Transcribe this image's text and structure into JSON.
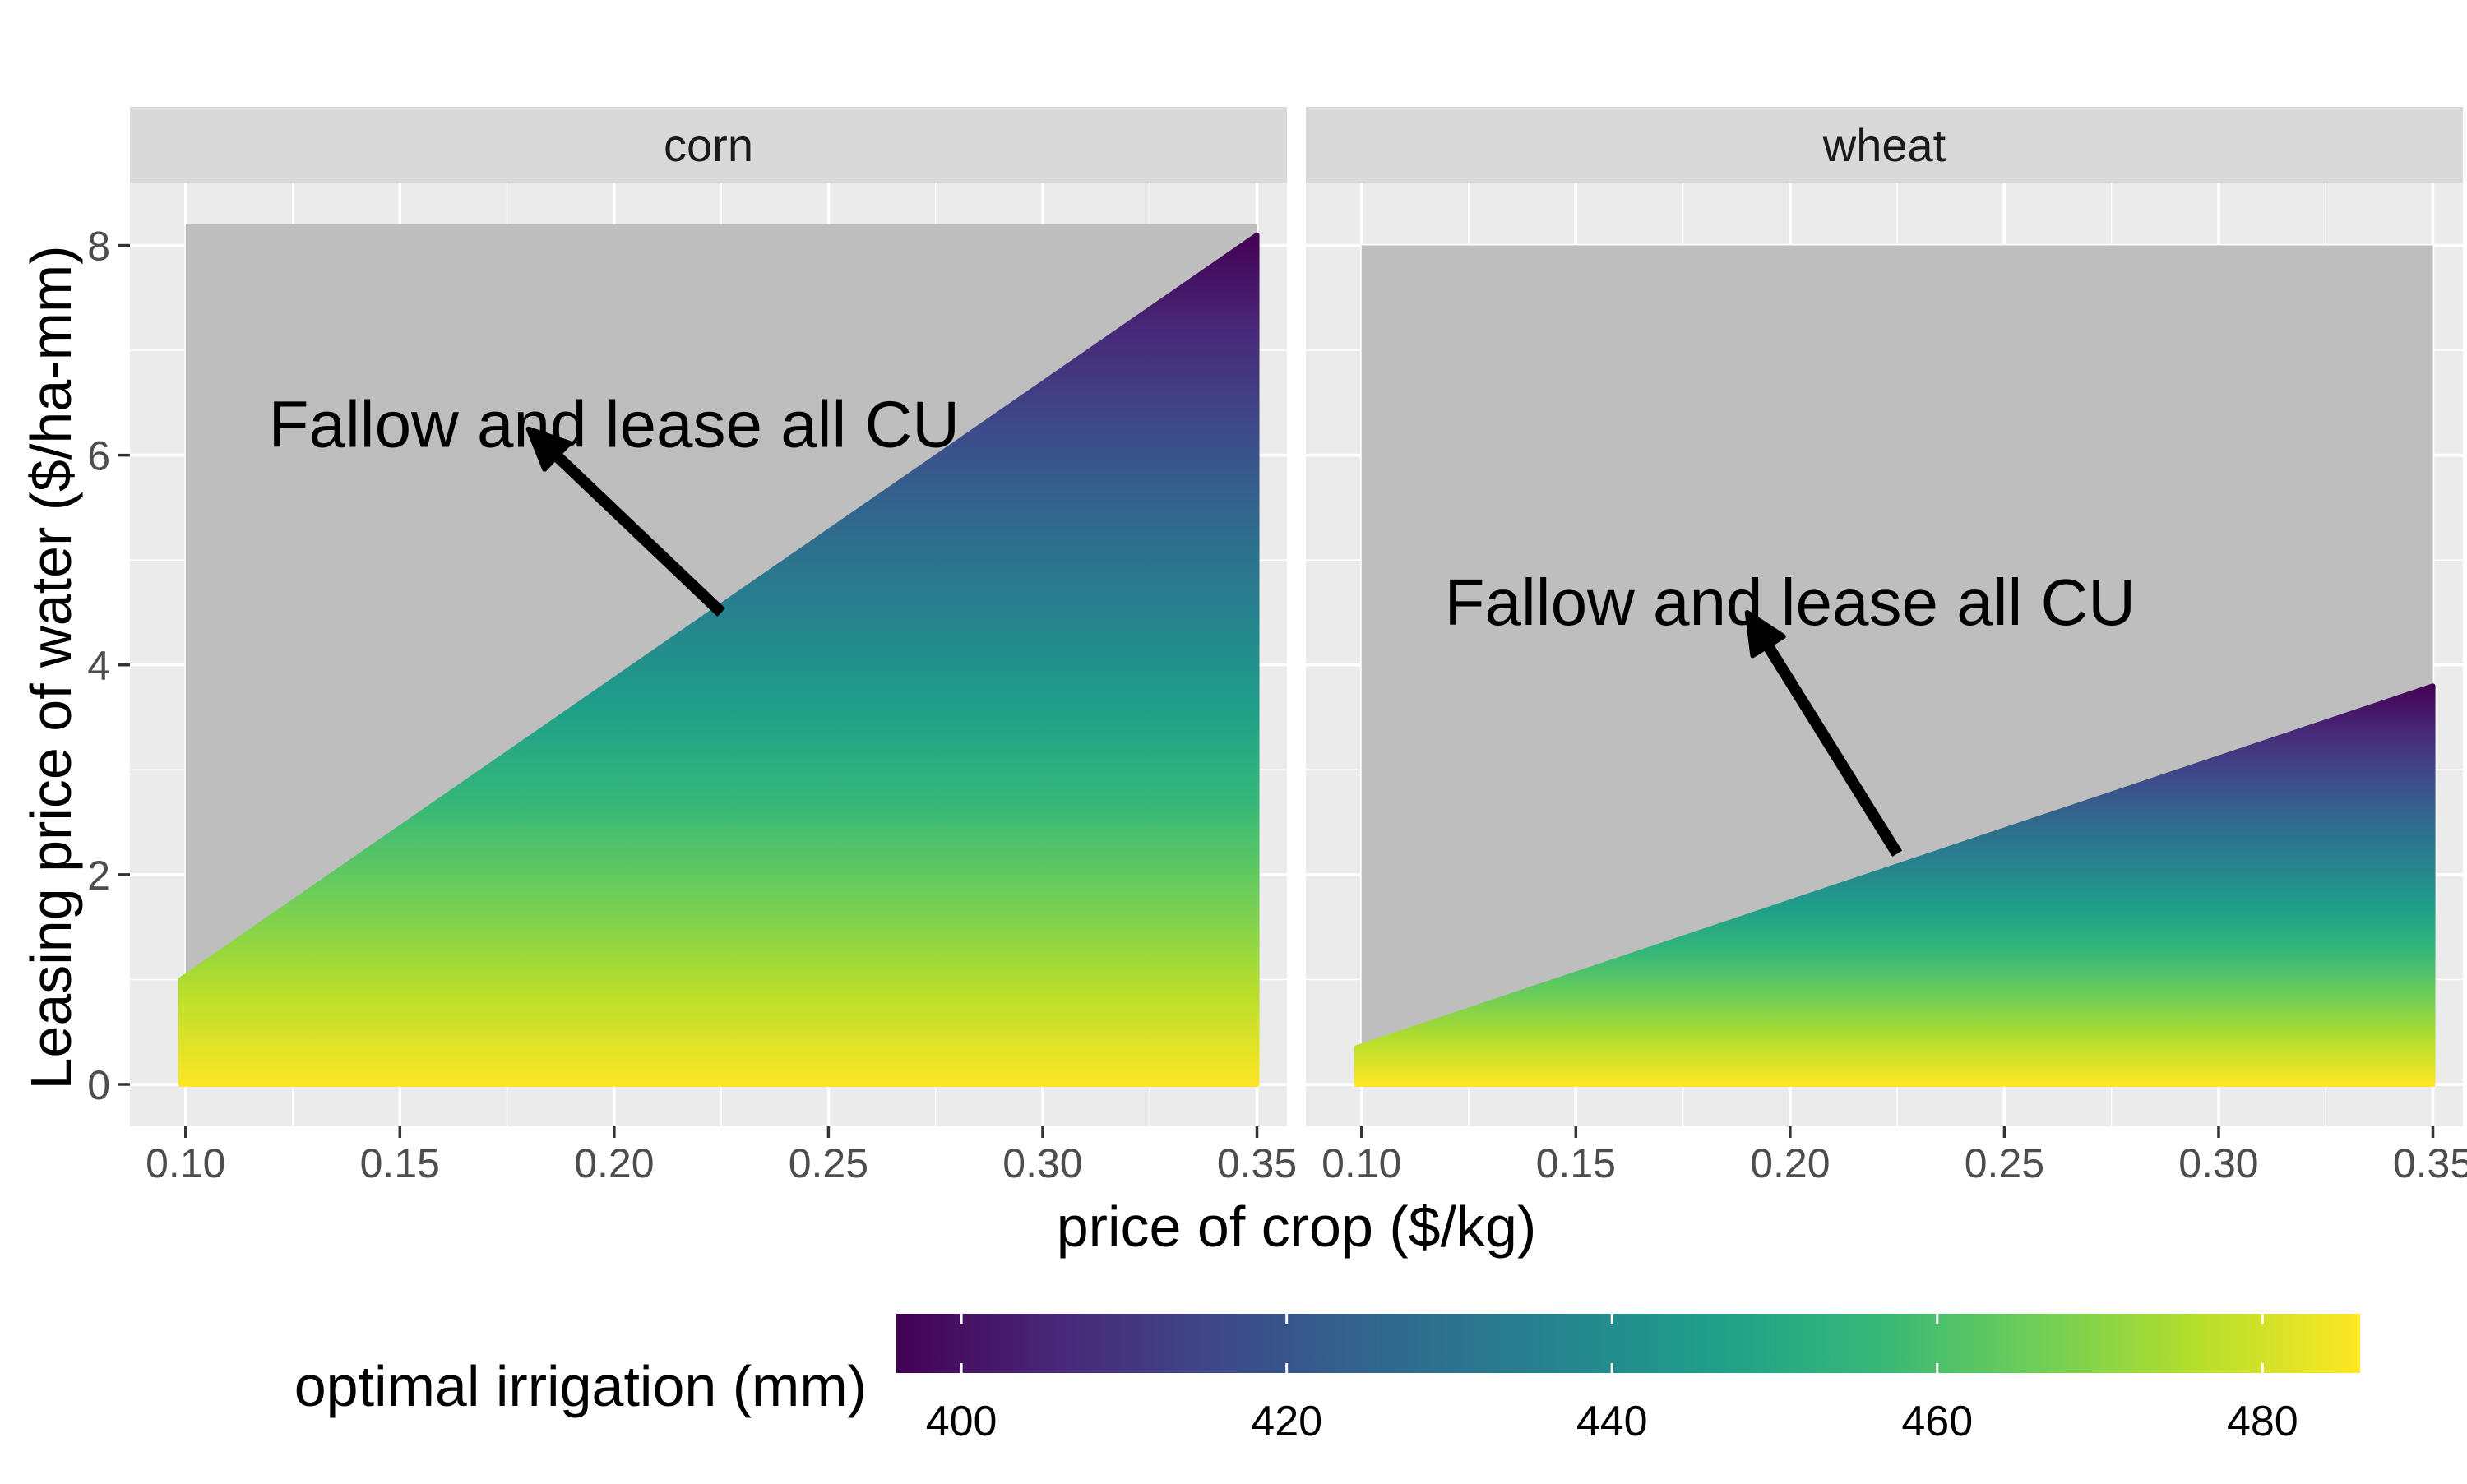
{
  "chart_data": {
    "type": "area",
    "xlabel": "price of crop ($/kg)",
    "ylabel": "Leasing price of water ($/ha-mm)",
    "xlim": [
      0.087,
      0.357
    ],
    "ylim": [
      -0.4,
      8.6
    ],
    "x_ticks": [
      0.1,
      0.15,
      0.2,
      0.25,
      0.3,
      0.35
    ],
    "x_tick_labels": [
      "0.10",
      "0.15",
      "0.20",
      "0.25",
      "0.30",
      "0.35"
    ],
    "y_ticks": [
      0,
      2,
      4,
      6,
      8
    ],
    "y_tick_labels": [
      "0",
      "2",
      "4",
      "6",
      "8"
    ],
    "grid": true,
    "panels": [
      {
        "name": "corn",
        "fallow_region": {
          "x": [
            0.1,
            0.35
          ],
          "y_top": 8.2
        },
        "boundary": {
          "x": [
            0.1,
            0.35
          ],
          "y": [
            1.0,
            8.1
          ]
        },
        "annotation": {
          "text": "Fallow and lease all CU",
          "text_x": 0.2,
          "text_y": 6.3,
          "arrow_from": [
            0.225,
            4.5
          ],
          "arrow_to": [
            0.18,
            6.25
          ]
        }
      },
      {
        "name": "wheat",
        "fallow_region": {
          "x": [
            0.1,
            0.35
          ],
          "y_top": 8.0
        },
        "boundary": {
          "x": [
            0.1,
            0.35
          ],
          "y": [
            0.35,
            3.8
          ]
        },
        "annotation": {
          "text": "Fallow and lease all CU",
          "text_x": 0.2,
          "text_y": 4.6,
          "arrow_from": [
            0.225,
            2.2
          ],
          "arrow_to": [
            0.19,
            4.5
          ]
        }
      }
    ],
    "legend": {
      "title": "optimal irrigation (mm)",
      "position": "bottom",
      "range": [
        396,
        486
      ],
      "ticks": [
        400,
        420,
        440,
        460,
        480
      ],
      "tick_labels": [
        "400",
        "420",
        "440",
        "460",
        "480"
      ],
      "colors": [
        "#440154",
        "#482878",
        "#3e4989",
        "#31688e",
        "#26828e",
        "#1f9e89",
        "#35b779",
        "#6ece58",
        "#b5de2b",
        "#fde725"
      ]
    }
  },
  "colors": {
    "panel_bg": "#ebebeb",
    "strip_bg": "#d9d9d9",
    "grid": "#ffffff",
    "fallow_fill": "#bebebe",
    "arrow": "#000000"
  }
}
